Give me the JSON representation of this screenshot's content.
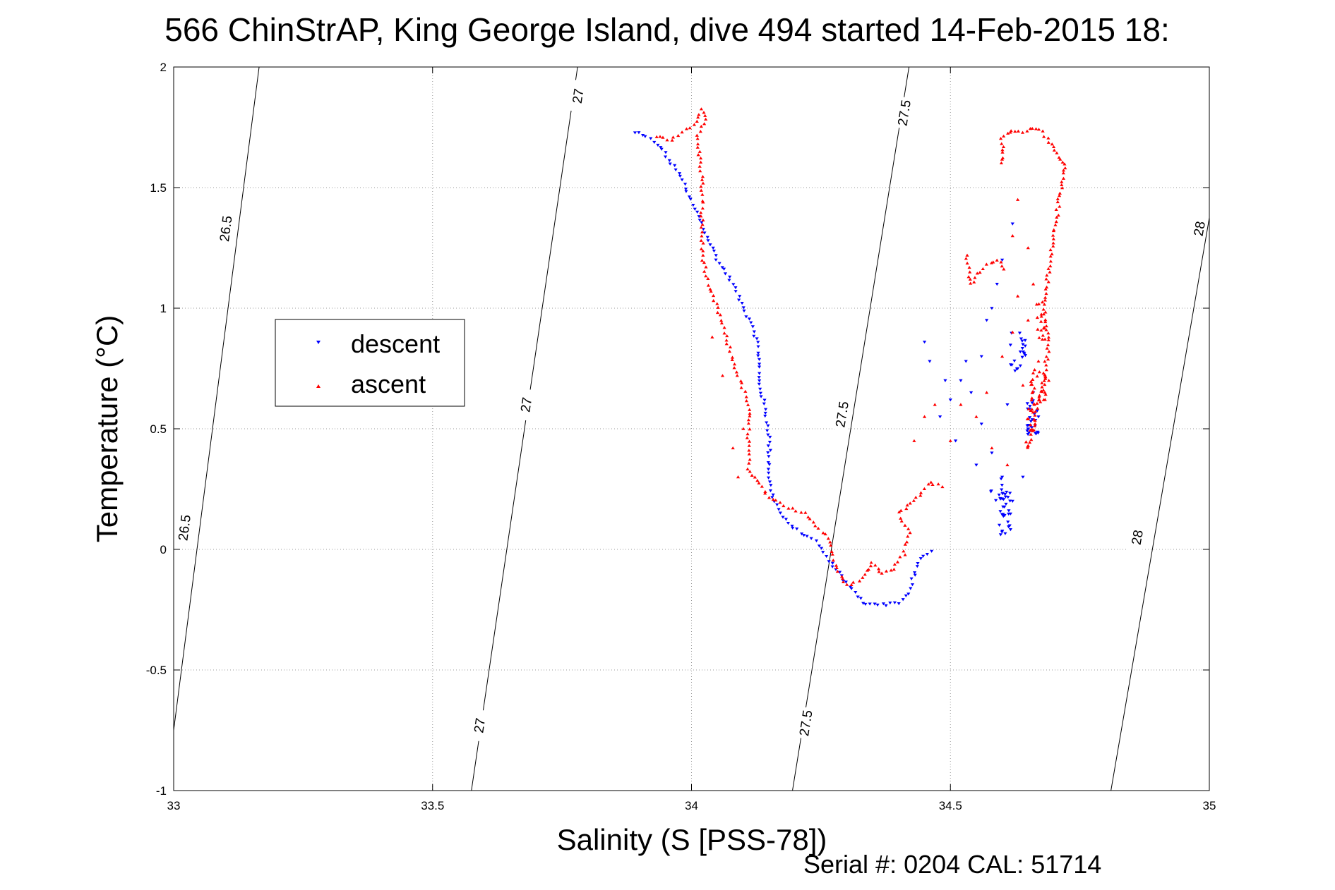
{
  "chart_data": {
    "type": "scatter",
    "title": "566 ChinStrAP, King George Island, dive 494 started 14-Feb-2015 18:",
    "xlabel": "Salinity (S [PSS-78])",
    "ylabel": "Temperature (°C)",
    "xlim": [
      33,
      35
    ],
    "ylim": [
      -1,
      2
    ],
    "xticks": [
      "33",
      "33.5",
      "34",
      "34.5",
      "35"
    ],
    "yticks": [
      "-1",
      "-0.5",
      "0",
      "0.5",
      "1",
      "1.5",
      "2"
    ],
    "grid": true,
    "legend_position": "left",
    "footer": "Serial #: 0204  CAL: 51714",
    "isopycnals": [
      {
        "label": "26.5",
        "x_bottom": 32.985,
        "x_top": 33.165,
        "label_positions": [
          [
            33.1,
            1.33
          ],
          [
            33.02,
            0.09
          ]
        ]
      },
      {
        "label": "27",
        "x_bottom": 33.575,
        "x_top": 33.78,
        "label_positions": [
          [
            33.78,
            1.88
          ],
          [
            33.68,
            0.6
          ],
          [
            33.59,
            -0.73
          ]
        ]
      },
      {
        "label": "27.5",
        "x_bottom": 34.195,
        "x_top": 34.42,
        "label_positions": [
          [
            34.41,
            1.81
          ],
          [
            34.29,
            0.56
          ],
          [
            34.22,
            -0.72
          ]
        ]
      },
      {
        "label": "28",
        "x_bottom": 34.81,
        "x_top": 35.05,
        "label_positions": [
          [
            34.98,
            1.33
          ],
          [
            34.86,
            0.05
          ]
        ]
      }
    ],
    "series": [
      {
        "name": "descent",
        "color": "#0000ff",
        "marker": "triangle-down",
        "path": [
          [
            33.89,
            1.73
          ],
          [
            33.92,
            1.7
          ],
          [
            33.94,
            1.67
          ],
          [
            33.96,
            1.6
          ],
          [
            33.98,
            1.55
          ],
          [
            33.99,
            1.48
          ],
          [
            34.01,
            1.4
          ],
          [
            34.03,
            1.3
          ],
          [
            34.05,
            1.2
          ],
          [
            34.08,
            1.1
          ],
          [
            34.1,
            1.0
          ],
          [
            34.12,
            0.92
          ],
          [
            34.13,
            0.82
          ],
          [
            34.13,
            0.7
          ],
          [
            34.14,
            0.6
          ],
          [
            34.15,
            0.48
          ],
          [
            34.15,
            0.38
          ],
          [
            34.15,
            0.28
          ],
          [
            34.16,
            0.2
          ],
          [
            34.18,
            0.12
          ],
          [
            34.21,
            0.07
          ],
          [
            34.24,
            0.03
          ],
          [
            34.27,
            -0.06
          ],
          [
            34.3,
            -0.14
          ],
          [
            34.33,
            -0.22
          ],
          [
            34.37,
            -0.23
          ],
          [
            34.4,
            -0.22
          ],
          [
            34.42,
            -0.18
          ],
          [
            34.44,
            -0.04
          ],
          [
            34.47,
            0.0
          ]
        ],
        "scatter": [
          [
            34.45,
            0.86
          ],
          [
            34.46,
            0.78
          ],
          [
            34.48,
            0.55
          ],
          [
            34.49,
            0.7
          ],
          [
            34.5,
            0.62
          ],
          [
            34.51,
            0.45
          ],
          [
            34.52,
            0.7
          ],
          [
            34.53,
            0.78
          ],
          [
            34.54,
            0.65
          ],
          [
            34.55,
            0.35
          ],
          [
            34.56,
            0.52
          ],
          [
            34.56,
            0.8
          ],
          [
            34.57,
            0.95
          ],
          [
            34.58,
            1.0
          ],
          [
            34.58,
            0.4
          ],
          [
            34.59,
            1.1
          ],
          [
            34.6,
            1.2
          ],
          [
            34.6,
            0.3
          ],
          [
            34.61,
            0.6
          ],
          [
            34.62,
            0.2
          ],
          [
            34.62,
            1.35
          ],
          [
            34.63,
            0.75
          ],
          [
            34.64,
            0.85
          ],
          [
            34.64,
            0.3
          ],
          [
            34.65,
            0.5
          ],
          [
            34.66,
            0.65
          ],
          [
            34.67,
            0.55
          ]
        ],
        "clusters": [
          [
            34.63,
            0.82,
            0.015,
            0.08,
            20
          ],
          [
            34.66,
            0.55,
            0.012,
            0.08,
            25
          ],
          [
            34.605,
            0.15,
            0.012,
            0.09,
            30
          ],
          [
            34.59,
            0.25,
            0.02,
            0.05,
            10
          ]
        ]
      },
      {
        "name": "ascent",
        "color": "#ff0000",
        "marker": "triangle-up",
        "path": [
          [
            33.93,
            1.71
          ],
          [
            33.96,
            1.7
          ],
          [
            33.99,
            1.74
          ],
          [
            34.01,
            1.78
          ],
          [
            34.02,
            1.82
          ],
          [
            34.03,
            1.78
          ],
          [
            34.01,
            1.72
          ],
          [
            34.02,
            1.55
          ],
          [
            34.02,
            1.4
          ],
          [
            34.02,
            1.25
          ],
          [
            34.03,
            1.1
          ],
          [
            34.05,
            1.0
          ],
          [
            34.07,
            0.85
          ],
          [
            34.09,
            0.72
          ],
          [
            34.11,
            0.6
          ],
          [
            34.11,
            0.45
          ],
          [
            34.11,
            0.32
          ],
          [
            34.15,
            0.22
          ],
          [
            34.18,
            0.18
          ],
          [
            34.22,
            0.15
          ],
          [
            34.24,
            0.1
          ],
          [
            34.27,
            0.03
          ],
          [
            34.28,
            -0.08
          ],
          [
            34.3,
            -0.15
          ],
          [
            34.33,
            -0.12
          ],
          [
            34.35,
            -0.05
          ],
          [
            34.37,
            -0.1
          ],
          [
            34.39,
            -0.08
          ],
          [
            34.41,
            -0.02
          ],
          [
            34.42,
            0.07
          ],
          [
            34.4,
            0.15
          ],
          [
            34.43,
            0.2
          ],
          [
            34.46,
            0.28
          ],
          [
            34.49,
            0.25
          ]
        ],
        "path2": [
          [
            34.6,
            1.6
          ],
          [
            34.6,
            1.7
          ],
          [
            34.62,
            1.74
          ],
          [
            34.64,
            1.73
          ],
          [
            34.66,
            1.75
          ],
          [
            34.68,
            1.73
          ],
          [
            34.7,
            1.65
          ],
          [
            34.72,
            1.6
          ],
          [
            34.71,
            1.45
          ],
          [
            34.7,
            1.3
          ],
          [
            34.69,
            1.15
          ],
          [
            34.68,
            1.0
          ],
          [
            34.69,
            0.85
          ],
          [
            34.68,
            0.7
          ],
          [
            34.67,
            0.6
          ],
          [
            34.66,
            0.5
          ],
          [
            34.65,
            0.42
          ],
          [
            34.64,
            0.45
          ]
        ],
        "path3": [
          [
            34.53,
            1.22
          ],
          [
            34.54,
            1.1
          ],
          [
            34.55,
            1.14
          ],
          [
            34.57,
            1.18
          ],
          [
            34.59,
            1.2
          ],
          [
            34.61,
            1.15
          ]
        ],
        "scatter": [
          [
            34.43,
            0.45
          ],
          [
            34.45,
            0.55
          ],
          [
            34.47,
            0.6
          ],
          [
            34.5,
            0.45
          ],
          [
            34.52,
            0.6
          ],
          [
            34.55,
            0.55
          ],
          [
            34.57,
            0.65
          ],
          [
            34.58,
            0.42
          ],
          [
            34.6,
            0.8
          ],
          [
            34.62,
            0.9
          ],
          [
            34.63,
            1.05
          ],
          [
            34.64,
            0.68
          ],
          [
            34.65,
            0.95
          ],
          [
            34.66,
            1.1
          ],
          [
            34.67,
            0.78
          ],
          [
            34.68,
            0.62
          ],
          [
            34.69,
            0.7
          ],
          [
            34.62,
            1.3
          ],
          [
            34.63,
            1.45
          ],
          [
            34.65,
            1.25
          ],
          [
            34.61,
            0.35
          ],
          [
            34.09,
            0.3
          ],
          [
            34.08,
            0.42
          ],
          [
            34.04,
            0.88
          ],
          [
            34.06,
            0.72
          ],
          [
            34.1,
            0.5
          ]
        ],
        "clusters": [
          [
            34.67,
            0.68,
            0.015,
            0.07,
            25
          ],
          [
            34.675,
            0.95,
            0.01,
            0.08,
            15
          ],
          [
            34.655,
            0.55,
            0.01,
            0.06,
            12
          ]
        ]
      }
    ]
  }
}
